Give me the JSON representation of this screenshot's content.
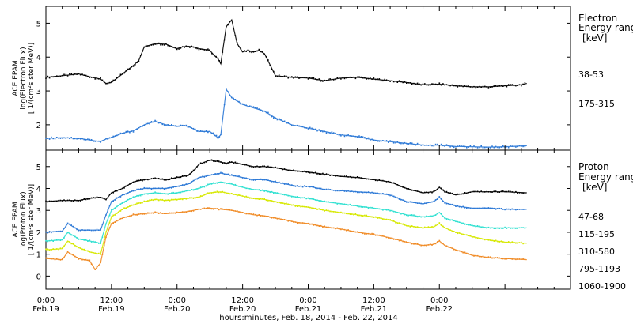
{
  "chart_data": [
    {
      "type": "scatter",
      "panel": "electron",
      "ylabel_lines": [
        "ACE EPAM",
        "log(Electron Flux)",
        "[ 1/(cm²s ster MeV)]"
      ],
      "legend_title": [
        "Electron",
        "Energy range",
        "[keV]"
      ],
      "yticks": [
        "2",
        "3",
        "4",
        "5"
      ],
      "ylim": [
        1.25,
        5.5
      ],
      "xlim": [
        0,
        96
      ],
      "grid": false,
      "series": [
        {
          "name": "38-53",
          "color": "#000000",
          "x": [
            0,
            3,
            6,
            8,
            10,
            11,
            12,
            14,
            16,
            17,
            18,
            20,
            22,
            24,
            25,
            26,
            27,
            28,
            30,
            30.8,
            31.5,
            32,
            33,
            34,
            35,
            36,
            37,
            38,
            39,
            40,
            42,
            45,
            48,
            51,
            54,
            57,
            60,
            63,
            66,
            69,
            72,
            75,
            78,
            81,
            84,
            87,
            88
          ],
          "y": [
            3.4,
            3.45,
            3.5,
            3.42,
            3.35,
            3.22,
            3.25,
            3.5,
            3.75,
            3.9,
            4.3,
            4.4,
            4.38,
            4.25,
            4.3,
            4.32,
            4.3,
            4.25,
            4.2,
            4.05,
            3.95,
            3.8,
            4.9,
            5.1,
            4.4,
            4.15,
            4.2,
            4.15,
            4.2,
            4.1,
            3.45,
            3.4,
            3.38,
            3.3,
            3.38,
            3.4,
            3.35,
            3.3,
            3.25,
            3.18,
            3.2,
            3.15,
            3.12,
            3.12,
            3.15,
            3.18,
            3.22
          ]
        },
        {
          "name": "175-315",
          "color": "#2b78d6",
          "x": [
            0,
            3,
            6,
            8,
            10,
            11,
            12,
            14,
            16,
            18,
            20,
            22,
            24,
            25,
            26,
            28,
            30,
            31.5,
            32,
            33,
            34,
            36,
            38,
            40,
            42,
            45,
            48,
            51,
            54,
            57,
            60,
            63,
            66,
            69,
            72,
            75,
            78,
            81,
            84,
            88
          ],
          "y": [
            1.6,
            1.62,
            1.6,
            1.55,
            1.5,
            1.58,
            1.62,
            1.75,
            1.82,
            2.0,
            2.1,
            2.0,
            1.95,
            1.98,
            1.95,
            1.8,
            1.8,
            1.62,
            1.7,
            3.05,
            2.8,
            2.6,
            2.5,
            2.4,
            2.2,
            2.0,
            1.9,
            1.8,
            1.7,
            1.65,
            1.55,
            1.5,
            1.45,
            1.4,
            1.4,
            1.36,
            1.35,
            1.34,
            1.35,
            1.38
          ]
        }
      ]
    },
    {
      "type": "scatter",
      "panel": "proton",
      "ylabel_lines": [
        "ACE EPAM",
        "log(Proton Flux)",
        "[ 1/(cm²s ster MeV)]"
      ],
      "legend_title": [
        "Proton",
        "Energy range",
        "[keV]"
      ],
      "yticks": [
        "0",
        "1",
        "2",
        "3",
        "4",
        "5"
      ],
      "ylim": [
        -0.6,
        5.75
      ],
      "xlim": [
        0,
        96
      ],
      "grid": false,
      "series": [
        {
          "name": "47-68",
          "color": "#000000",
          "x": [
            0,
            3,
            6,
            8,
            10,
            11,
            12,
            14,
            16,
            18,
            20,
            22,
            24,
            26,
            27,
            28,
            30,
            32,
            33,
            34,
            36,
            38,
            40,
            42,
            44,
            46,
            48,
            51,
            54,
            57,
            60,
            63,
            66,
            69,
            71,
            72,
            73,
            75,
            78,
            81,
            84,
            88
          ],
          "y": [
            3.4,
            3.45,
            3.45,
            3.55,
            3.6,
            3.5,
            3.8,
            4.0,
            4.3,
            4.4,
            4.45,
            4.4,
            4.5,
            4.6,
            4.8,
            5.1,
            5.3,
            5.2,
            5.15,
            5.2,
            5.1,
            5.0,
            5.0,
            4.95,
            4.85,
            4.8,
            4.75,
            4.65,
            4.55,
            4.5,
            4.4,
            4.3,
            4.0,
            3.8,
            3.85,
            4.05,
            3.85,
            3.7,
            3.85,
            3.85,
            3.85,
            3.8
          ]
        },
        {
          "name": "115-195",
          "color": "#2b78d6",
          "x": [
            0,
            3,
            4,
            6,
            8,
            10,
            11,
            12,
            14,
            16,
            18,
            20,
            22,
            24,
            26,
            28,
            30,
            32,
            34,
            36,
            38,
            40,
            42,
            44,
            46,
            48,
            51,
            54,
            57,
            60,
            63,
            66,
            69,
            71,
            72,
            73,
            75,
            78,
            81,
            84,
            88
          ],
          "y": [
            2.0,
            2.05,
            2.4,
            2.1,
            2.1,
            2.1,
            2.8,
            3.4,
            3.7,
            3.9,
            4.0,
            4.0,
            4.0,
            4.1,
            4.2,
            4.5,
            4.6,
            4.7,
            4.6,
            4.5,
            4.4,
            4.4,
            4.3,
            4.2,
            4.1,
            4.1,
            3.95,
            3.9,
            3.85,
            3.8,
            3.7,
            3.4,
            3.3,
            3.4,
            3.6,
            3.35,
            3.2,
            3.1,
            3.1,
            3.05,
            3.05
          ]
        },
        {
          "name": "310-580",
          "color": "#2ee0d0",
          "x": [
            0,
            3,
            4,
            6,
            8,
            10,
            11,
            12,
            14,
            16,
            18,
            20,
            22,
            24,
            26,
            28,
            30,
            32,
            34,
            36,
            38,
            40,
            42,
            44,
            46,
            48,
            51,
            54,
            57,
            60,
            63,
            66,
            69,
            71,
            72,
            73,
            75,
            78,
            81,
            84,
            88
          ],
          "y": [
            1.6,
            1.65,
            2.0,
            1.7,
            1.6,
            1.5,
            2.4,
            3.0,
            3.35,
            3.6,
            3.75,
            3.8,
            3.75,
            3.8,
            3.9,
            4.0,
            4.2,
            4.3,
            4.2,
            4.05,
            3.95,
            3.9,
            3.8,
            3.7,
            3.6,
            3.55,
            3.4,
            3.3,
            3.2,
            3.1,
            3.0,
            2.8,
            2.7,
            2.75,
            2.9,
            2.65,
            2.5,
            2.3,
            2.2,
            2.2,
            2.2
          ]
        },
        {
          "name": "795-1193",
          "color": "#d6e800",
          "x": [
            0,
            3,
            4,
            6,
            8,
            10,
            11,
            12,
            14,
            16,
            18,
            20,
            22,
            24,
            26,
            28,
            30,
            32,
            34,
            36,
            38,
            40,
            42,
            44,
            46,
            48,
            51,
            54,
            57,
            60,
            63,
            66,
            69,
            71,
            72,
            73,
            75,
            78,
            81,
            84,
            88
          ],
          "y": [
            1.2,
            1.25,
            1.6,
            1.3,
            1.1,
            1.0,
            2.0,
            2.7,
            3.05,
            3.25,
            3.4,
            3.5,
            3.45,
            3.5,
            3.55,
            3.6,
            3.8,
            3.85,
            3.75,
            3.65,
            3.55,
            3.5,
            3.4,
            3.3,
            3.2,
            3.15,
            3.0,
            2.9,
            2.8,
            2.7,
            2.55,
            2.3,
            2.2,
            2.25,
            2.4,
            2.2,
            2.0,
            1.8,
            1.65,
            1.55,
            1.5
          ]
        },
        {
          "name": "1060-1900",
          "color": "#f08a24",
          "x": [
            0,
            3,
            4,
            6,
            8,
            9,
            10,
            11,
            12,
            14,
            16,
            18,
            20,
            22,
            24,
            26,
            28,
            30,
            32,
            34,
            36,
            38,
            40,
            42,
            44,
            46,
            48,
            51,
            54,
            57,
            60,
            63,
            66,
            69,
            71,
            72,
            73,
            75,
            78,
            81,
            84,
            88
          ],
          "y": [
            0.8,
            0.75,
            1.1,
            0.8,
            0.7,
            0.3,
            0.6,
            1.8,
            2.4,
            2.65,
            2.8,
            2.85,
            2.9,
            2.85,
            2.9,
            2.95,
            3.05,
            3.1,
            3.05,
            3.0,
            2.9,
            2.8,
            2.75,
            2.65,
            2.55,
            2.45,
            2.4,
            2.25,
            2.15,
            2.0,
            1.9,
            1.75,
            1.55,
            1.4,
            1.45,
            1.6,
            1.4,
            1.2,
            0.95,
            0.85,
            0.8,
            0.75
          ]
        }
      ]
    }
  ],
  "x_axis": {
    "tick_times": [
      "0:00",
      "12:00",
      "0:00",
      "12:00",
      "0:00",
      "12:00",
      "0:00"
    ],
    "tick_dates": [
      "Feb.19",
      "Feb.19",
      "Feb.20",
      "Feb.20",
      "Feb.21",
      "Feb.21",
      "Feb.22"
    ],
    "title": "hours:minutes, Feb. 18, 2014 - Feb. 22, 2014"
  }
}
